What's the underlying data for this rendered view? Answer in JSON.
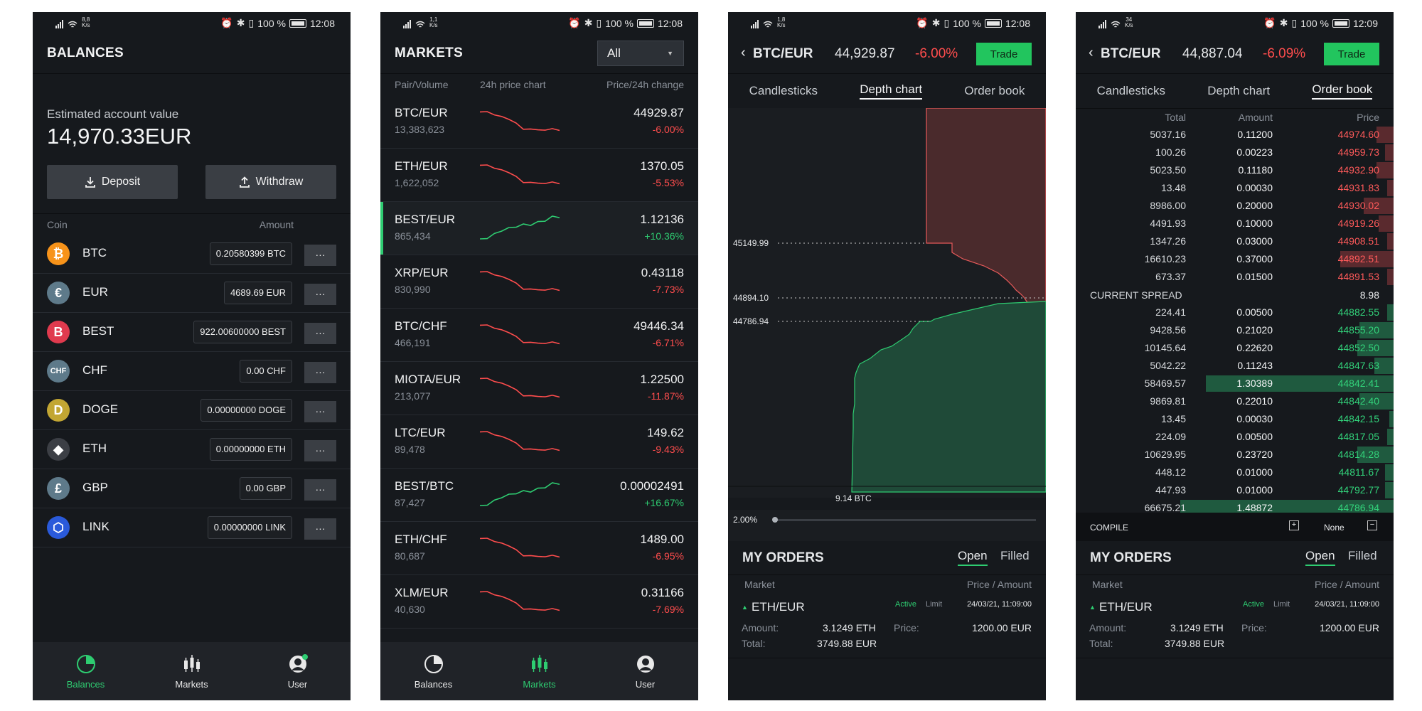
{
  "status": {
    "phone1": {
      "net": "8,8",
      "unit": "K/s",
      "battery": "100 %",
      "time": "12:08"
    },
    "phone2": {
      "net": "1,1",
      "unit": "K/s",
      "battery": "100 %",
      "time": "12:08"
    },
    "phone3": {
      "net": "1,8",
      "unit": "K/s",
      "battery": "100 %",
      "time": "12:08"
    },
    "phone4": {
      "net": "34",
      "unit": "K/s",
      "battery": "100 %",
      "time": "12:09"
    }
  },
  "balances": {
    "title": "BALANCES",
    "est_label": "Estimated account value",
    "est_value": "14,970.33",
    "est_currency": "EUR",
    "deposit": "Deposit",
    "withdraw": "Withdraw",
    "col_coin": "Coin",
    "col_amount": "Amount",
    "more": "···",
    "coins": [
      {
        "symbol": "BTC",
        "amount": "0.20580399 BTC",
        "icon": "bitcoin-icon",
        "color": "#f7931a",
        "glyph": "₿"
      },
      {
        "symbol": "EUR",
        "amount": "4689.69 EUR",
        "icon": "euro-icon",
        "color": "#5e7a8a",
        "glyph": "€"
      },
      {
        "symbol": "BEST",
        "amount": "922.00600000 BEST",
        "icon": "best-icon",
        "color": "#e03a4e",
        "glyph": "B"
      },
      {
        "symbol": "CHF",
        "amount": "0.00 CHF",
        "icon": "chf-icon",
        "color": "#5e7a8a",
        "glyph": "CHF"
      },
      {
        "symbol": "DOGE",
        "amount": "0.00000000 DOGE",
        "icon": "doge-icon",
        "color": "#c2a633",
        "glyph": "D"
      },
      {
        "symbol": "ETH",
        "amount": "0.00000000 ETH",
        "icon": "ethereum-icon",
        "color": "#3c3f45",
        "glyph": "◆"
      },
      {
        "symbol": "GBP",
        "amount": "0.00 GBP",
        "icon": "pound-icon",
        "color": "#5e7a8a",
        "glyph": "£"
      },
      {
        "symbol": "LINK",
        "amount": "0.00000000 LINK",
        "icon": "chainlink-icon",
        "color": "#2a5ada",
        "glyph": "⬡"
      }
    ]
  },
  "nav": {
    "balances": "Balances",
    "markets": "Markets",
    "user": "User"
  },
  "markets": {
    "title": "MARKETS",
    "filter": "All",
    "col_pair": "Pair/Volume",
    "col_chart": "24h price chart",
    "col_price": "Price/24h change",
    "rows": [
      {
        "pair": "BTC/EUR",
        "volume": "13,383,623",
        "price": "44929.87",
        "change": "-6.00%",
        "up": false
      },
      {
        "pair": "ETH/EUR",
        "volume": "1,622,052",
        "price": "1370.05",
        "change": "-5.53%",
        "up": false
      },
      {
        "pair": "BEST/EUR",
        "volume": "865,434",
        "price": "1.12136",
        "change": "+10.36%",
        "up": true
      },
      {
        "pair": "XRP/EUR",
        "volume": "830,990",
        "price": "0.43118",
        "change": "-7.73%",
        "up": false
      },
      {
        "pair": "BTC/CHF",
        "volume": "466,191",
        "price": "49446.34",
        "change": "-6.71%",
        "up": false
      },
      {
        "pair": "MIOTA/EUR",
        "volume": "213,077",
        "price": "1.22500",
        "change": "-11.87%",
        "up": false
      },
      {
        "pair": "LTC/EUR",
        "volume": "89,478",
        "price": "149.62",
        "change": "-9.43%",
        "up": false
      },
      {
        "pair": "BEST/BTC",
        "volume": "87,427",
        "price": "0.00002491",
        "change": "+16.67%",
        "up": true
      },
      {
        "pair": "ETH/CHF",
        "volume": "80,687",
        "price": "1489.00",
        "change": "-6.95%",
        "up": false
      },
      {
        "pair": "XLM/EUR",
        "volume": "40,630",
        "price": "0.31166",
        "change": "-7.69%",
        "up": false
      }
    ]
  },
  "depth": {
    "pair": "BTC/EUR",
    "price": "44,929.87",
    "change": "-6.00%",
    "trade": "Trade",
    "tabs": [
      "Candlesticks",
      "Depth chart",
      "Order book"
    ],
    "levels": [
      "45149.99",
      "44894.10",
      "44786.94"
    ],
    "volume_label": "9.14 BTC",
    "zoom": "2.00%"
  },
  "orderbook": {
    "pair": "BTC/EUR",
    "price": "44,887.04",
    "change": "-6.09%",
    "trade": "Trade",
    "tabs": [
      "Candlesticks",
      "Depth chart",
      "Order book"
    ],
    "col_total": "Total",
    "col_amount": "Amount",
    "col_price": "Price",
    "asks": [
      {
        "total": "5037.16",
        "amount": "0.11200",
        "price": "44974.60",
        "depth": 0.08
      },
      {
        "total": "100.26",
        "amount": "0.00223",
        "price": "44959.73",
        "depth": 0.04
      },
      {
        "total": "5023.50",
        "amount": "0.11180",
        "price": "44932.90",
        "depth": 0.08
      },
      {
        "total": "13.48",
        "amount": "0.00030",
        "price": "44931.83",
        "depth": 0.03
      },
      {
        "total": "8986.00",
        "amount": "0.20000",
        "price": "44930.02",
        "depth": 0.14
      },
      {
        "total": "4491.93",
        "amount": "0.10000",
        "price": "44919.26",
        "depth": 0.07
      },
      {
        "total": "1347.26",
        "amount": "0.03000",
        "price": "44908.51",
        "depth": 0.03
      },
      {
        "total": "16610.23",
        "amount": "0.37000",
        "price": "44892.51",
        "depth": 0.25
      },
      {
        "total": "673.37",
        "amount": "0.01500",
        "price": "44891.53",
        "depth": 0.03
      }
    ],
    "spread_label": "CURRENT SPREAD",
    "spread_value": "8.98",
    "bids": [
      {
        "total": "224.41",
        "amount": "0.00500",
        "price": "44882.55",
        "depth": 0.03
      },
      {
        "total": "9428.56",
        "amount": "0.21020",
        "price": "44855.20",
        "depth": 0.16
      },
      {
        "total": "10145.64",
        "amount": "0.22620",
        "price": "44852.50",
        "depth": 0.17
      },
      {
        "total": "5042.22",
        "amount": "0.11243",
        "price": "44847.63",
        "depth": 0.09
      },
      {
        "total": "58469.57",
        "amount": "1.30389",
        "price": "44842.41",
        "depth": 0.88
      },
      {
        "total": "9869.81",
        "amount": "0.22010",
        "price": "44842.40",
        "depth": 0.16
      },
      {
        "total": "13.45",
        "amount": "0.00030",
        "price": "44842.15",
        "depth": 0.02
      },
      {
        "total": "224.09",
        "amount": "0.00500",
        "price": "44817.05",
        "depth": 0.03
      },
      {
        "total": "10629.95",
        "amount": "0.23720",
        "price": "44814.28",
        "depth": 0.17
      },
      {
        "total": "448.12",
        "amount": "0.01000",
        "price": "44811.67",
        "depth": 0.04
      },
      {
        "total": "447.93",
        "amount": "0.01000",
        "price": "44792.77",
        "depth": 0.04
      },
      {
        "total": "66675.21",
        "amount": "1.48872",
        "price": "44786.94",
        "depth": 1.0
      }
    ],
    "compile_label": "COMPILE",
    "compile_value": "None"
  },
  "orders": {
    "title": "MY ORDERS",
    "tab_open": "Open",
    "tab_filled": "Filled",
    "col_market": "Market",
    "col_price_amount": "Price / Amount",
    "order": {
      "pair": "ETH/EUR",
      "status": "Active",
      "type": "Limit",
      "datetime": "24/03/21, 11:09:00",
      "amount_label": "Amount:",
      "amount": "3.1249 ETH",
      "price_label": "Price:",
      "price": "1200.00 EUR",
      "total_label": "Total:",
      "total": "3749.88 EUR"
    }
  },
  "colors": {
    "accent": "#2ecc71",
    "negative": "#ff4d4d",
    "trade": "#22c55e",
    "background": "#16191d"
  }
}
